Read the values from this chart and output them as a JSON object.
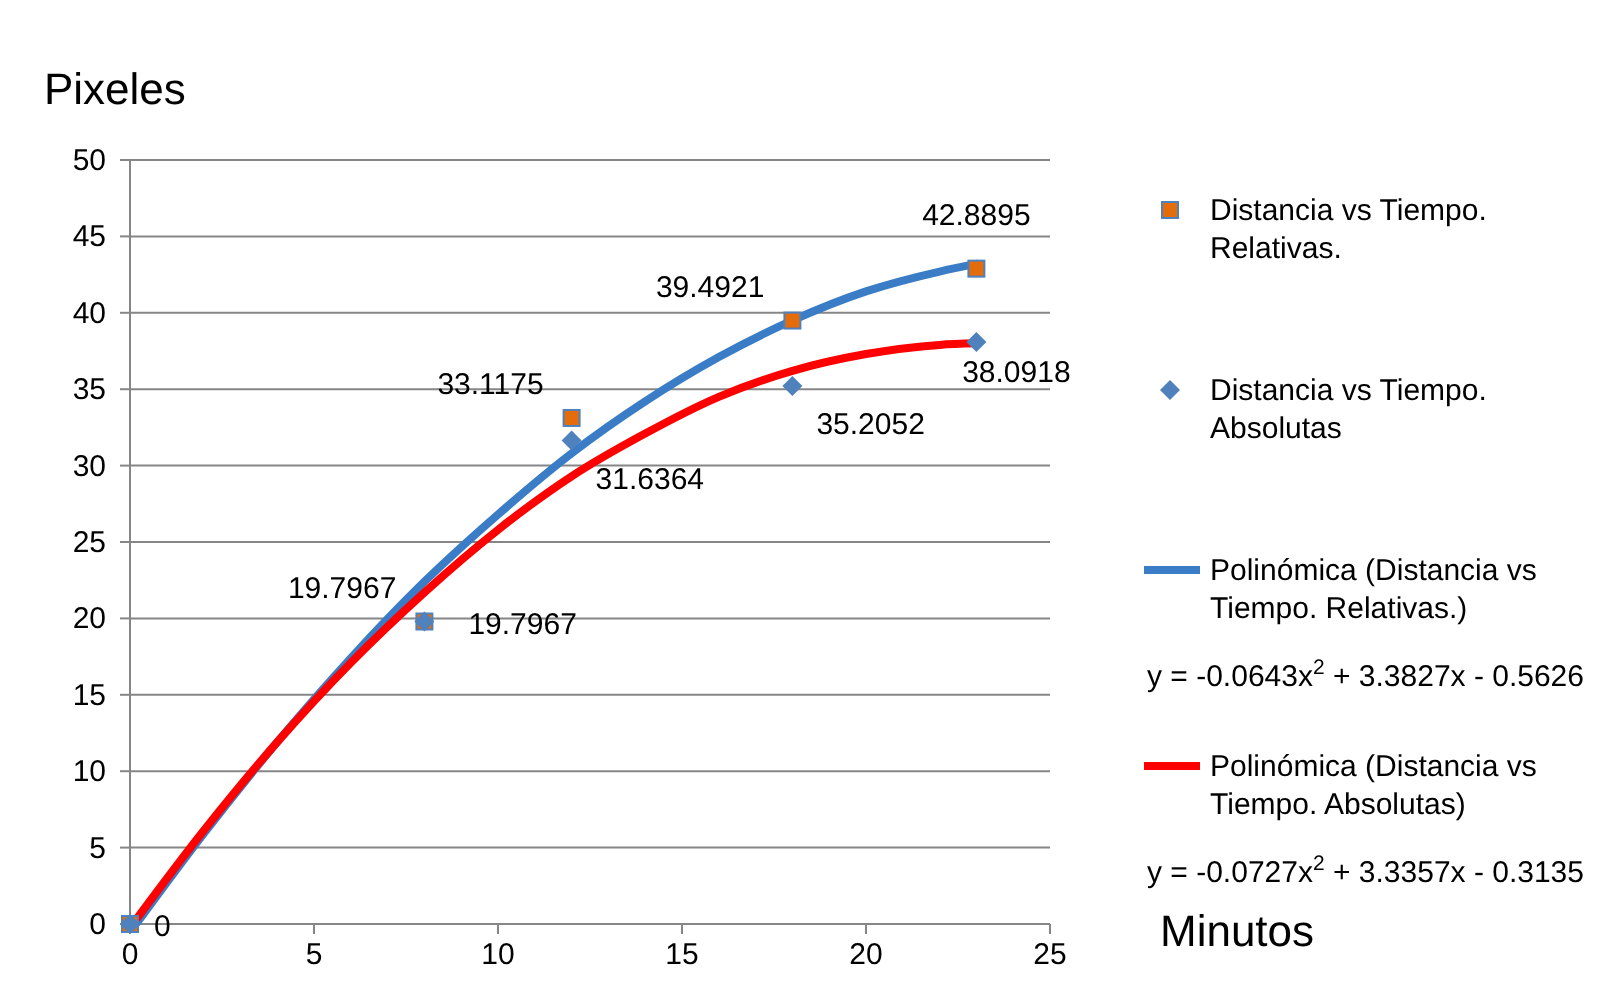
{
  "chart_data": {
    "type": "scatter",
    "ylabel": "Pixeles",
    "xlabel": "Minutos",
    "xlim": [
      0,
      25
    ],
    "xticks": [
      0,
      5,
      10,
      15,
      20,
      25
    ],
    "ylim": [
      0,
      50
    ],
    "yticks": [
      0,
      5,
      10,
      15,
      20,
      25,
      30,
      35,
      40,
      45,
      50
    ],
    "grid": "y",
    "legend": "right",
    "series": [
      {
        "name": "Distancia vs Tiempo. Relativas.",
        "marker": "square",
        "color": "#e46c0a",
        "x": [
          0,
          8,
          12,
          18,
          23
        ],
        "values": [
          0,
          19.7967,
          33.1175,
          39.4921,
          42.8895
        ],
        "value_labels": [
          null,
          "19.7967",
          "33.1175",
          "39.4921",
          "42.8895"
        ]
      },
      {
        "name": "Distancia vs Tiempo. Absolutas",
        "marker": "diamond",
        "color": "#4f81bd",
        "x": [
          0,
          8,
          12,
          18,
          23
        ],
        "values": [
          0,
          19.7967,
          31.6364,
          35.2052,
          38.0918
        ],
        "value_labels": [
          "0",
          "19.7967",
          "31.6364",
          "35.2052",
          "38.0918"
        ]
      },
      {
        "name": "Polinómica (Distancia vs Tiempo. Relativas.)",
        "type": "line",
        "marker": "none",
        "color": "#3a7dc6",
        "x": [
          0.2,
          2,
          4,
          6,
          8,
          10,
          12,
          14,
          16,
          18,
          20,
          22,
          23
        ],
        "values": [
          0.1,
          5.9,
          11.9,
          17.4,
          22.4,
          26.8,
          30.8,
          34.2,
          37.1,
          39.5,
          41.4,
          42.7,
          43.2
        ]
      },
      {
        "name": "Polinómica (Distancia vs Tiempo. Absolutas)",
        "type": "line",
        "marker": "none",
        "color": "#ff0000",
        "x": [
          0.2,
          2,
          4,
          6,
          8,
          10,
          12,
          14,
          16,
          18,
          20,
          22,
          23
        ],
        "values": [
          0.4,
          6.1,
          11.9,
          17.1,
          21.7,
          25.8,
          29.3,
          32.1,
          34.5,
          36.2,
          37.3,
          37.9,
          38.0
        ]
      }
    ],
    "annotations": [
      "y = -0.0643x$^{2}$ + 3.3827x - 0.5626",
      "y = -0.0727x$^{2}$ + 3.3357x - 0.3135"
    ]
  }
}
